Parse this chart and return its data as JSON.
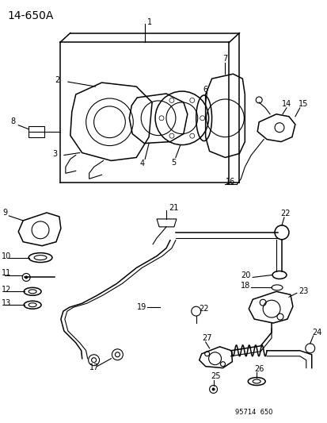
{
  "title": "14-650A",
  "watermark": "95714  650",
  "bg_color": "#ffffff",
  "fig_width": 4.14,
  "fig_height": 5.33,
  "dpi": 100
}
